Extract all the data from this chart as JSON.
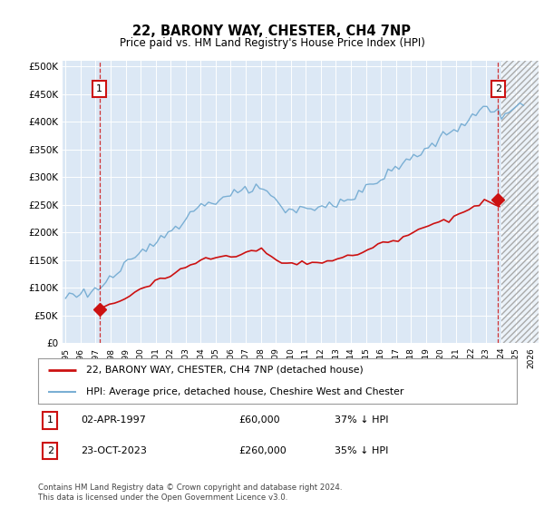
{
  "title": "22, BARONY WAY, CHESTER, CH4 7NP",
  "subtitle": "Price paid vs. HM Land Registry's House Price Index (HPI)",
  "legend_line1": "22, BARONY WAY, CHESTER, CH4 7NP (detached house)",
  "legend_line2": "HPI: Average price, detached house, Cheshire West and Chester",
  "footnote": "Contains HM Land Registry data © Crown copyright and database right 2024.\nThis data is licensed under the Open Government Licence v3.0.",
  "table_row1": [
    "1",
    "02-APR-1997",
    "£60,000",
    "37% ↓ HPI"
  ],
  "table_row2": [
    "2",
    "23-OCT-2023",
    "£260,000",
    "35% ↓ HPI"
  ],
  "sale1_x": 1997.25,
  "sale1_y": 60000,
  "sale2_x": 2023.81,
  "sale2_y": 260000,
  "hpi_color": "#7aafd4",
  "price_color": "#cc1111",
  "background_color": "#dce8f5",
  "plot_bg": "#dce8f5",
  "ylim": [
    0,
    510000
  ],
  "xlim": [
    1994.8,
    2026.5
  ],
  "yticks": [
    0,
    50000,
    100000,
    150000,
    200000,
    250000,
    300000,
    350000,
    400000,
    450000,
    500000
  ],
  "xticks": [
    1995,
    1996,
    1997,
    1998,
    1999,
    2000,
    2001,
    2002,
    2003,
    2004,
    2005,
    2006,
    2007,
    2008,
    2009,
    2010,
    2011,
    2012,
    2013,
    2014,
    2015,
    2016,
    2017,
    2018,
    2019,
    2020,
    2021,
    2022,
    2023,
    2024,
    2025,
    2026
  ],
  "fig_width": 6.0,
  "fig_height": 5.6,
  "dpi": 100
}
